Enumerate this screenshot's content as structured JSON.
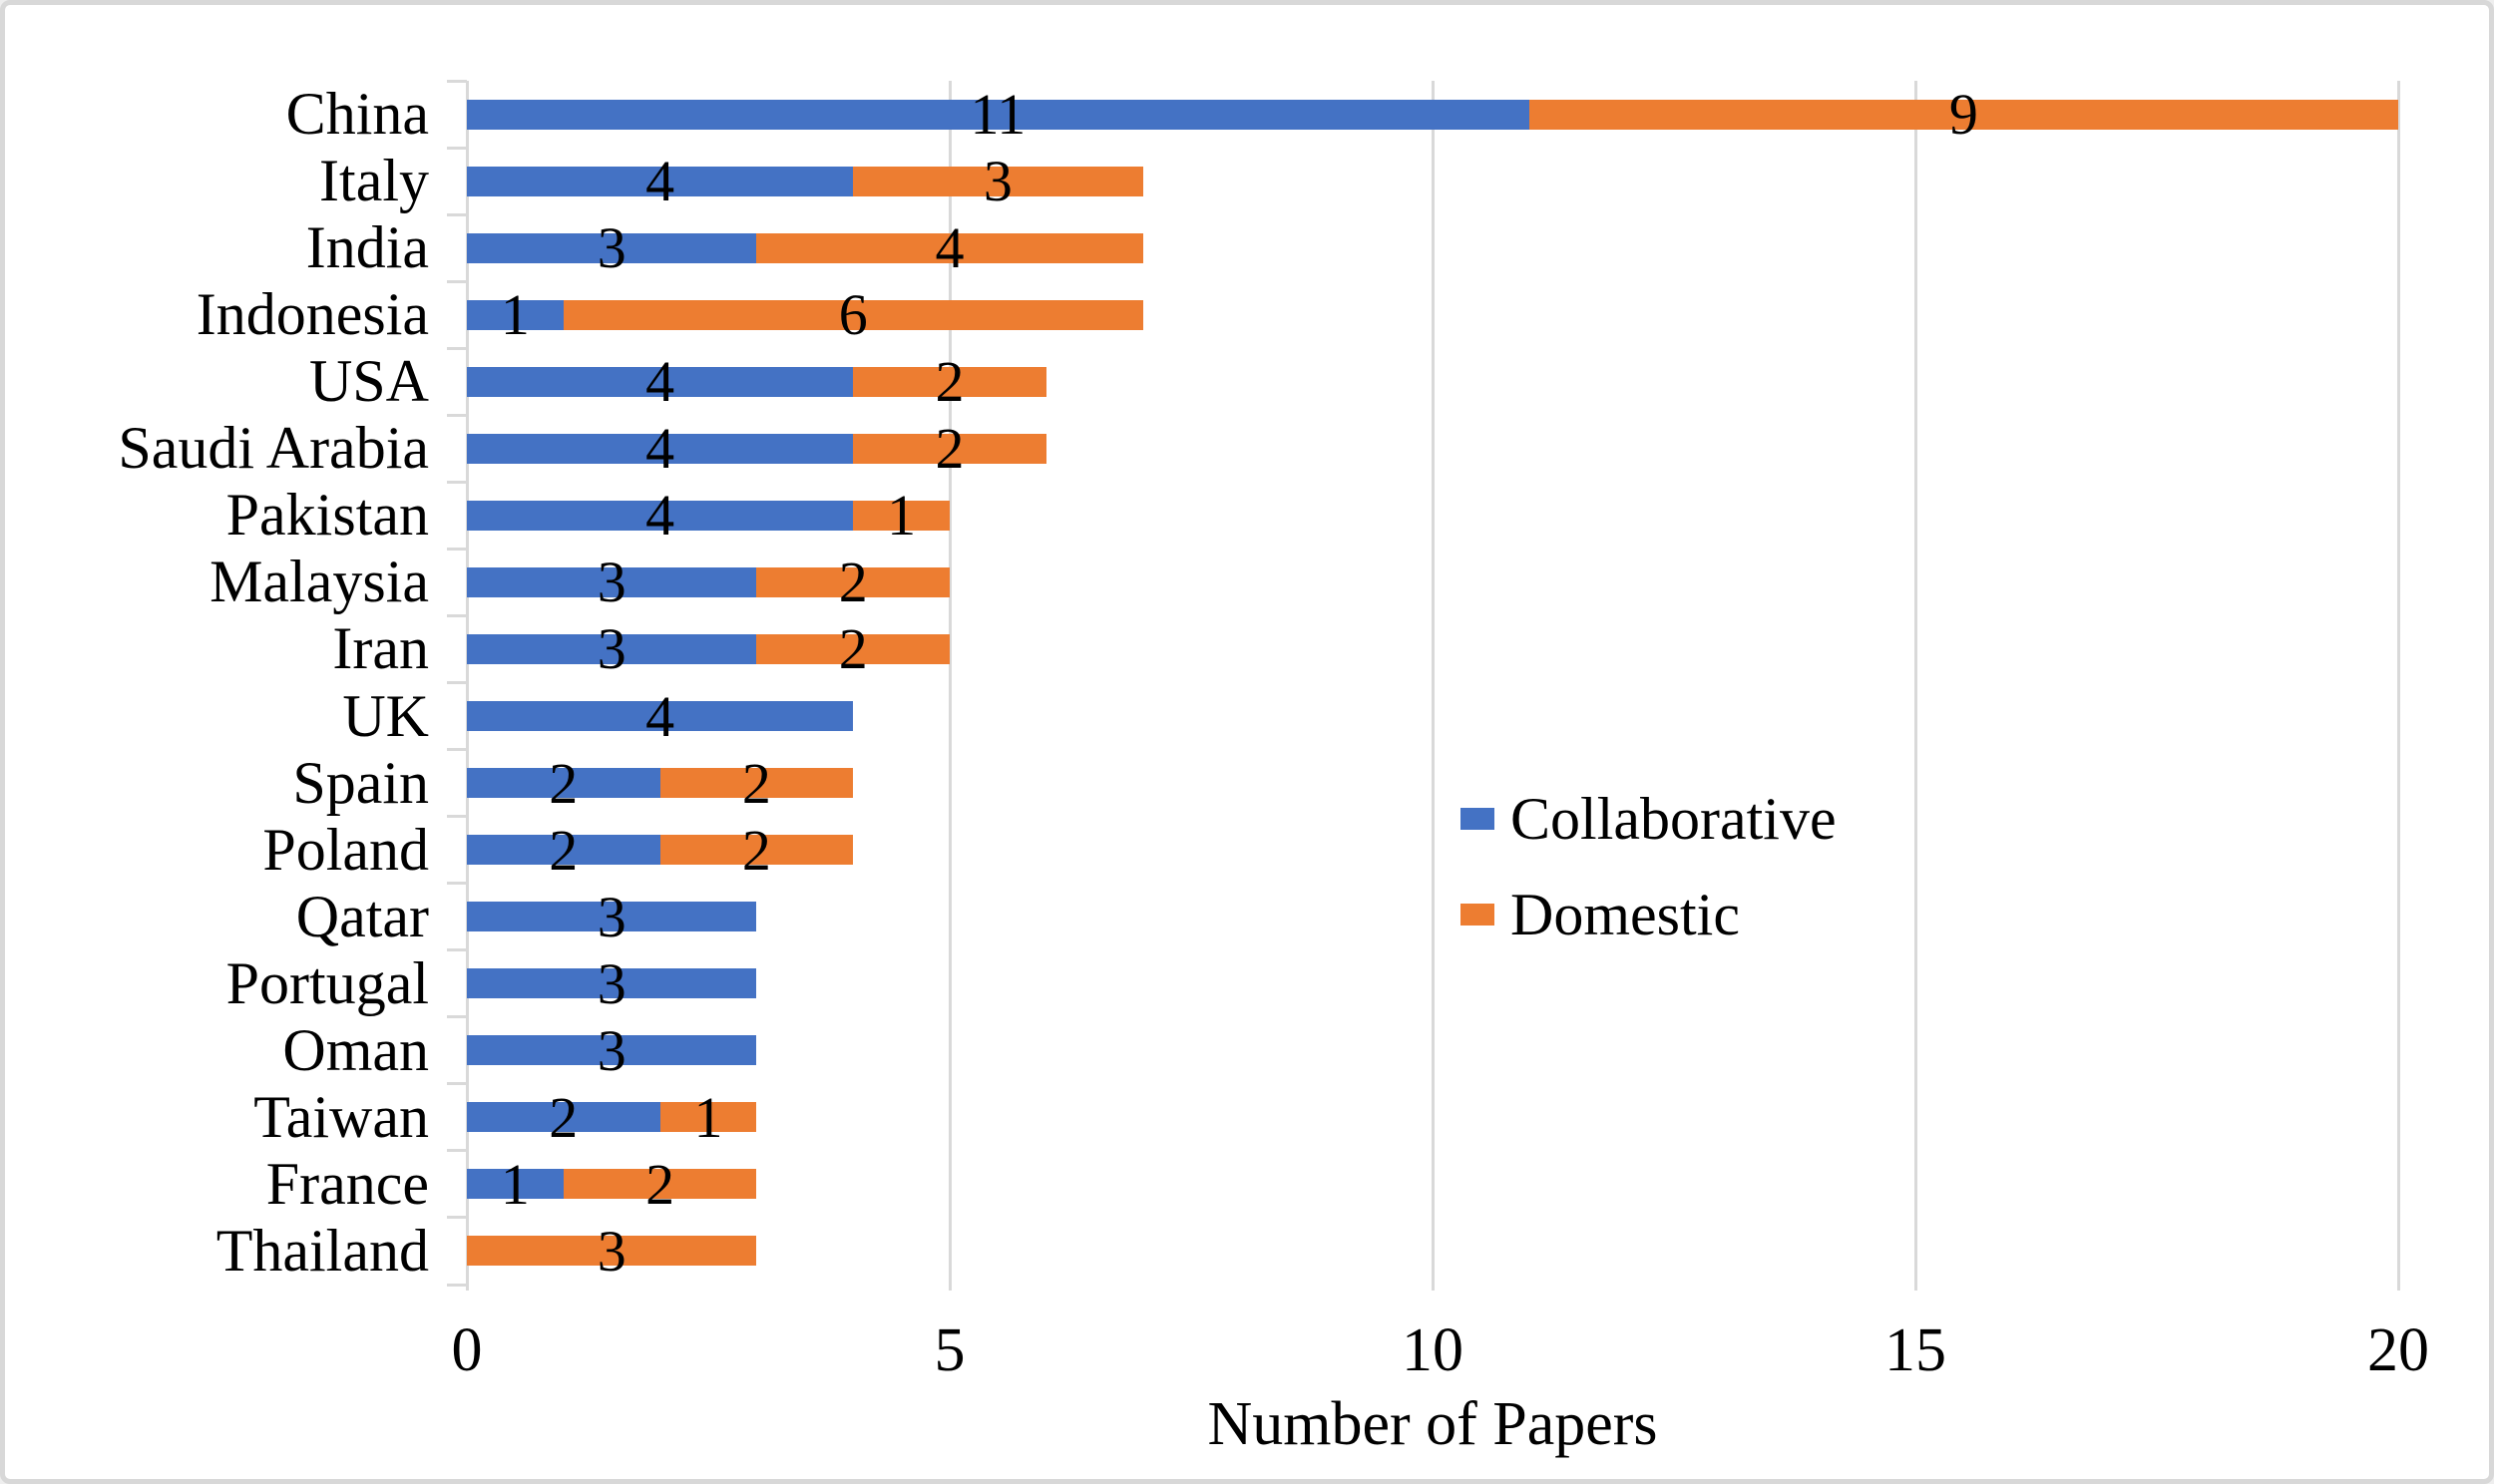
{
  "chart_data": {
    "type": "bar",
    "orientation": "horizontal",
    "stacked": true,
    "title": "",
    "xlabel": "Number of Papers",
    "ylabel": "",
    "xlim": [
      0,
      20
    ],
    "xticks": [
      0,
      5,
      10,
      15,
      20
    ],
    "grid": "vertical-only",
    "legend_position": "center-right",
    "categories": [
      "China",
      "Italy",
      "India",
      "Indonesia",
      "USA",
      "Saudi Arabia",
      "Pakistan",
      "Malaysia",
      "Iran",
      "UK",
      "Spain",
      "Poland",
      "Qatar",
      "Portugal",
      "Oman",
      "Taiwan",
      "France",
      "Thailand"
    ],
    "series": [
      {
        "name": "Collaborative",
        "color": "#4472C4",
        "values": [
          11,
          4,
          3,
          1,
          4,
          4,
          4,
          3,
          3,
          4,
          2,
          2,
          3,
          3,
          3,
          2,
          1,
          0
        ]
      },
      {
        "name": "Domestic",
        "color": "#ED7D31",
        "values": [
          9,
          3,
          4,
          6,
          2,
          2,
          1,
          2,
          2,
          0,
          2,
          2,
          0,
          0,
          0,
          1,
          2,
          3
        ]
      }
    ],
    "totals": [
      20,
      7,
      7,
      7,
      6,
      6,
      5,
      5,
      5,
      4,
      4,
      4,
      3,
      3,
      3,
      3,
      3,
      3
    ],
    "data_labels": "value shown centered in every non-zero segment"
  },
  "figure": {
    "axis_color": "#D9D9D9",
    "gridline_color": "#D9D9D9",
    "text_color": "#000000",
    "border_color": "#D8D8D8",
    "background": "#FFFFFF"
  }
}
